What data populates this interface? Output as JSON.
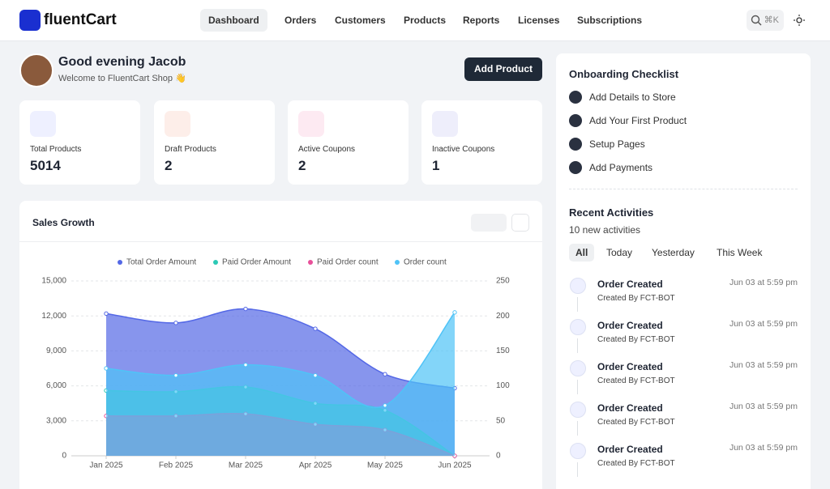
{
  "nav": {
    "logo": "fluentCart",
    "items": [
      "Dashboard",
      "Orders",
      "Customers",
      "Products",
      "Reports",
      "Licenses",
      "Subscriptions"
    ],
    "search_shortcut": "⌘K"
  },
  "greeting": {
    "title": "Good evening Jacob",
    "subtitle": "Welcome to FluentCart Shop 👋"
  },
  "add_product": "Add Product",
  "stats": [
    {
      "label": "Total Products",
      "value": 5014
    },
    {
      "label": "Draft Products",
      "value": 2
    },
    {
      "label": "Active Coupons",
      "value": 2
    },
    {
      "label": "Inactive Coupons",
      "value": 1
    }
  ],
  "onboarding": {
    "title": "Onboarding Checklist",
    "items": [
      "Add Details to Store",
      "Add Your First Product",
      "Setup Pages",
      "Add Payments"
    ]
  },
  "activities": {
    "title": "Recent Activities",
    "subtitle": "10 new activities",
    "tabs": [
      "All",
      "Today",
      "Yesterday",
      "This Week"
    ],
    "items": [
      {
        "title": "Order Created",
        "by": "Created By FCT-BOT",
        "time": "Jun 03 at 5:59 pm"
      },
      {
        "title": "Order Created",
        "by": "Created By FCT-BOT",
        "time": "Jun 03 at 5:59 pm"
      },
      {
        "title": "Order Created",
        "by": "Created By FCT-BOT",
        "time": "Jun 03 at 5:59 pm"
      },
      {
        "title": "Order Created",
        "by": "Created By FCT-BOT",
        "time": "Jun 03 at 5:59 pm"
      },
      {
        "title": "Order Created",
        "by": "Created By FCT-BOT",
        "time": "Jun 03 at 5:59 pm"
      }
    ]
  },
  "chart_data": {
    "type": "area",
    "title": "Sales Growth",
    "categories": [
      "Jan 2025",
      "Feb 2025",
      "Mar 2025",
      "Apr 2025",
      "May 2025",
      "Jun 2025"
    ],
    "ylim": [
      0,
      15000
    ],
    "yticks": [
      0,
      {
        "value": 3000,
        "label": "3,000"
      },
      {
        "value": 6000,
        "label": "6,000"
      },
      {
        "value": 9000,
        "label": "9,000"
      },
      {
        "value": 12000,
        "label": "12,000"
      },
      {
        "value": 15000,
        "label": "15,000"
      }
    ],
    "y2lim": [
      0,
      250
    ],
    "y2ticks": [
      0,
      50,
      100,
      150,
      200,
      250
    ],
    "grid": true,
    "legend": "top",
    "series": [
      {
        "name": "Total Order Amount",
        "color": "#5468e6",
        "values": [
          12200,
          11400,
          12600,
          10900,
          7000,
          5800
        ]
      },
      {
        "name": "Paid Order Amount",
        "color": "#2cc9b5",
        "values": [
          5600,
          5500,
          5900,
          4500,
          3900,
          0
        ]
      },
      {
        "name": "Paid Order count",
        "color": "#e8509a",
        "axis": "y2",
        "values": [
          57,
          57,
          60,
          45,
          37,
          0
        ]
      },
      {
        "name": "Order count",
        "color": "#4fc3f7",
        "axis": "y2",
        "values": [
          125,
          115,
          130,
          115,
          72,
          205
        ]
      }
    ]
  }
}
